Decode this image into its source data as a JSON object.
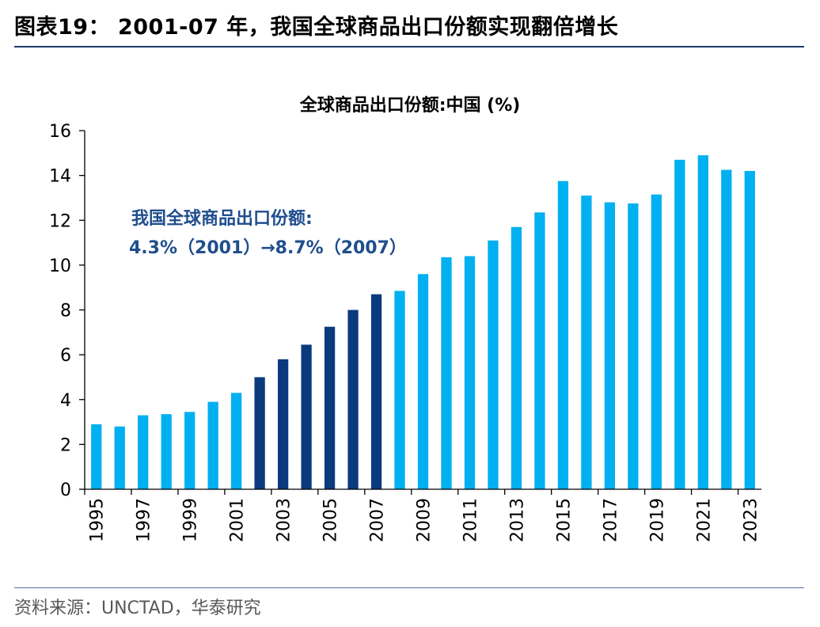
{
  "figure": {
    "title": "图表19：  2001-07 年，我国全球商品出口份额实现翻倍增长",
    "source": "资料来源：UNCTAD，华泰研究"
  },
  "colors": {
    "highlight": "#0b3a7e",
    "normal": "#00b0f0",
    "annotation": "#1f4e8c"
  },
  "chart_data": {
    "type": "bar",
    "title": "全球商品出口份额:中国 (%)",
    "xlabel": "",
    "ylabel": "",
    "ylim": [
      0,
      16
    ],
    "yticks": [
      0,
      2,
      4,
      6,
      8,
      10,
      12,
      14,
      16
    ],
    "grid": false,
    "categories": [
      "1995",
      "1996",
      "1997",
      "1998",
      "1999",
      "2000",
      "2001",
      "2002",
      "2003",
      "2004",
      "2005",
      "2006",
      "2007",
      "2008",
      "2009",
      "2010",
      "2011",
      "2012",
      "2013",
      "2014",
      "2015",
      "2016",
      "2017",
      "2018",
      "2019",
      "2020",
      "2021",
      "2022",
      "2023"
    ],
    "xtick_labels": [
      "1995",
      "1997",
      "1999",
      "2001",
      "2003",
      "2005",
      "2007",
      "2009",
      "2011",
      "2013",
      "2015",
      "2017",
      "2019",
      "2021",
      "2023"
    ],
    "values": [
      2.9,
      2.8,
      3.3,
      3.35,
      3.45,
      3.9,
      4.3,
      5.0,
      5.8,
      6.45,
      7.25,
      8.0,
      8.7,
      8.85,
      9.6,
      10.35,
      10.4,
      11.1,
      11.7,
      12.35,
      13.75,
      13.1,
      12.8,
      12.75,
      13.15,
      14.7,
      14.9,
      14.25,
      14.2
    ],
    "highlight_categories": [
      "2002",
      "2003",
      "2004",
      "2005",
      "2006",
      "2007"
    ],
    "annotation": {
      "line1": "我国全球商品出口份额:",
      "line2": "4.3%（2001）→8.7%（2007）"
    }
  }
}
